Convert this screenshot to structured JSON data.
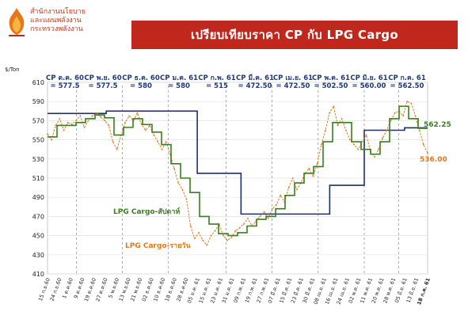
{
  "header": {
    "org_line1": "สำนักงานนโยบาย",
    "org_line2": "และแผนพลังงาน",
    "org_line3": "กระทรวงพลังงาน",
    "title": "เปรียบเทียบราคา   CP กับ LPG Cargo"
  },
  "chart_data": {
    "type": "line",
    "unit_label": "$/Ton",
    "ylim": [
      410,
      610
    ],
    "yticks": [
      610,
      590,
      570,
      550,
      530,
      510,
      490,
      470,
      450,
      430,
      410
    ],
    "x_labels": [
      "15 ก.ย.60",
      "24 ก.ย.60",
      "1 ต.ค.60",
      "9 ต.ค.60",
      "19 ต.ค.60",
      "27 ต.ค.60",
      "5 พ.ย.60",
      "13 พ.ย.60",
      "21 พ.ย.60",
      "02 ธ.ค.60",
      "10 ธ.ค.60",
      "18 ธ.ค.60",
      "28 ธ.ค.60",
      "05 ม.ค. 61",
      "15 ม.ค. 61",
      "23 ม.ค. 61",
      "31 ม.ค. 61",
      "09 ก.พ. 61",
      "19 ก.พ. 61",
      "27 ก.พ. 61",
      "07 มี.ค. 61",
      "15 มี.ค. 61",
      "23 มี.ค. 61",
      "30 มี.ค. 61",
      "08 เม.ย. 61",
      "16 เม.ย. 61",
      "24 เม.ย. 61",
      "02 พ.ค. 61",
      "11 พ.ค. 61",
      "20 พ.ค. 61",
      "28 พ.ค. 61",
      "05 มิ.ย. 61",
      "13 มิ.ย. 61",
      "18 ก.ค. 61"
    ],
    "highlight_label": "18 ก.ค. 61",
    "cp_annotations": [
      {
        "l1": "CP ต.ค. 60",
        "l2": "= 577.5"
      },
      {
        "l1": "CP พ.ย. 60",
        "l2": "= 577.5"
      },
      {
        "l1": "CP ธ.ค. 60",
        "l2": "= 580"
      },
      {
        "l1": "CP ม.ค. 61",
        "l2": "= 580"
      },
      {
        "l1": "CP ก.พ. 61",
        "l2": "= 515"
      },
      {
        "l1": "CP มี.ค. 61",
        "l2": "= 472.50"
      },
      {
        "l1": "CP เม.ย. 61",
        "l2": "= 472.50"
      },
      {
        "l1": "CP พ.ค. 61",
        "l2": "= 502.50"
      },
      {
        "l1": "CP มิ.ย. 61",
        "l2": "= 560.00"
      },
      {
        "l1": "CP ก.ค. 61",
        "l2": "= 562.50"
      }
    ],
    "series": [
      {
        "name": "CP",
        "color": "#1f3060",
        "style": "step",
        "steps": [
          {
            "x0": 0,
            "x1": 0.5,
            "y": 577.5
          },
          {
            "x0": 0.5,
            "x1": 5.1,
            "y": 577.5
          },
          {
            "x0": 5.1,
            "x1": 13.0,
            "y": 580
          },
          {
            "x0": 13.0,
            "x1": 16.8,
            "y": 515
          },
          {
            "x0": 16.8,
            "x1": 24.5,
            "y": 472.5
          },
          {
            "x0": 24.5,
            "x1": 27.5,
            "y": 502.5
          },
          {
            "x0": 27.5,
            "x1": 31.0,
            "y": 560
          },
          {
            "x0": 31.0,
            "x1": 33.0,
            "y": 562.5
          }
        ]
      },
      {
        "name": "LPG Cargo-สัปดาห์",
        "color": "#3b7d1f",
        "style": "step",
        "y": [
          553,
          565,
          565,
          568,
          572,
          576,
          573,
          555,
          563,
          572,
          566,
          558,
          545,
          525,
          510,
          495,
          470,
          462,
          452,
          450,
          453,
          460,
          467,
          470,
          478,
          492,
          505,
          515,
          522,
          548,
          568,
          568,
          548,
          540,
          535,
          548,
          572,
          585,
          572,
          562
        ]
      },
      {
        "name": "LPG Cargo-รายวัน",
        "color": "#e07a1c",
        "style": "dashed",
        "y": [
          556,
          550,
          565,
          572,
          560,
          568,
          566,
          570,
          575,
          563,
          570,
          575,
          578,
          574,
          570,
          565,
          548,
          540,
          555,
          568,
          575,
          570,
          578,
          566,
          560,
          565,
          555,
          548,
          540,
          548,
          535,
          520,
          505,
          498,
          488,
          460,
          447,
          453,
          445,
          440,
          450,
          455,
          462,
          450,
          445,
          448,
          455,
          458,
          462,
          468,
          460,
          465,
          470,
          475,
          468,
          478,
          482,
          492,
          485,
          500,
          510,
          498,
          505,
          515,
          520,
          512,
          525,
          545,
          560,
          578,
          585,
          565,
          572,
          560,
          550,
          545,
          540,
          548,
          555,
          538,
          532,
          540,
          552,
          560,
          570,
          578,
          580,
          575,
          590,
          588,
          575,
          560,
          545,
          536
        ]
      }
    ],
    "legend_labels": {
      "weekly": "LPG Cargo-สัปดาห์",
      "daily": "LPG Cargo-รายวัน"
    },
    "end_values": {
      "weekly": "562.25",
      "daily": "536.00"
    }
  }
}
